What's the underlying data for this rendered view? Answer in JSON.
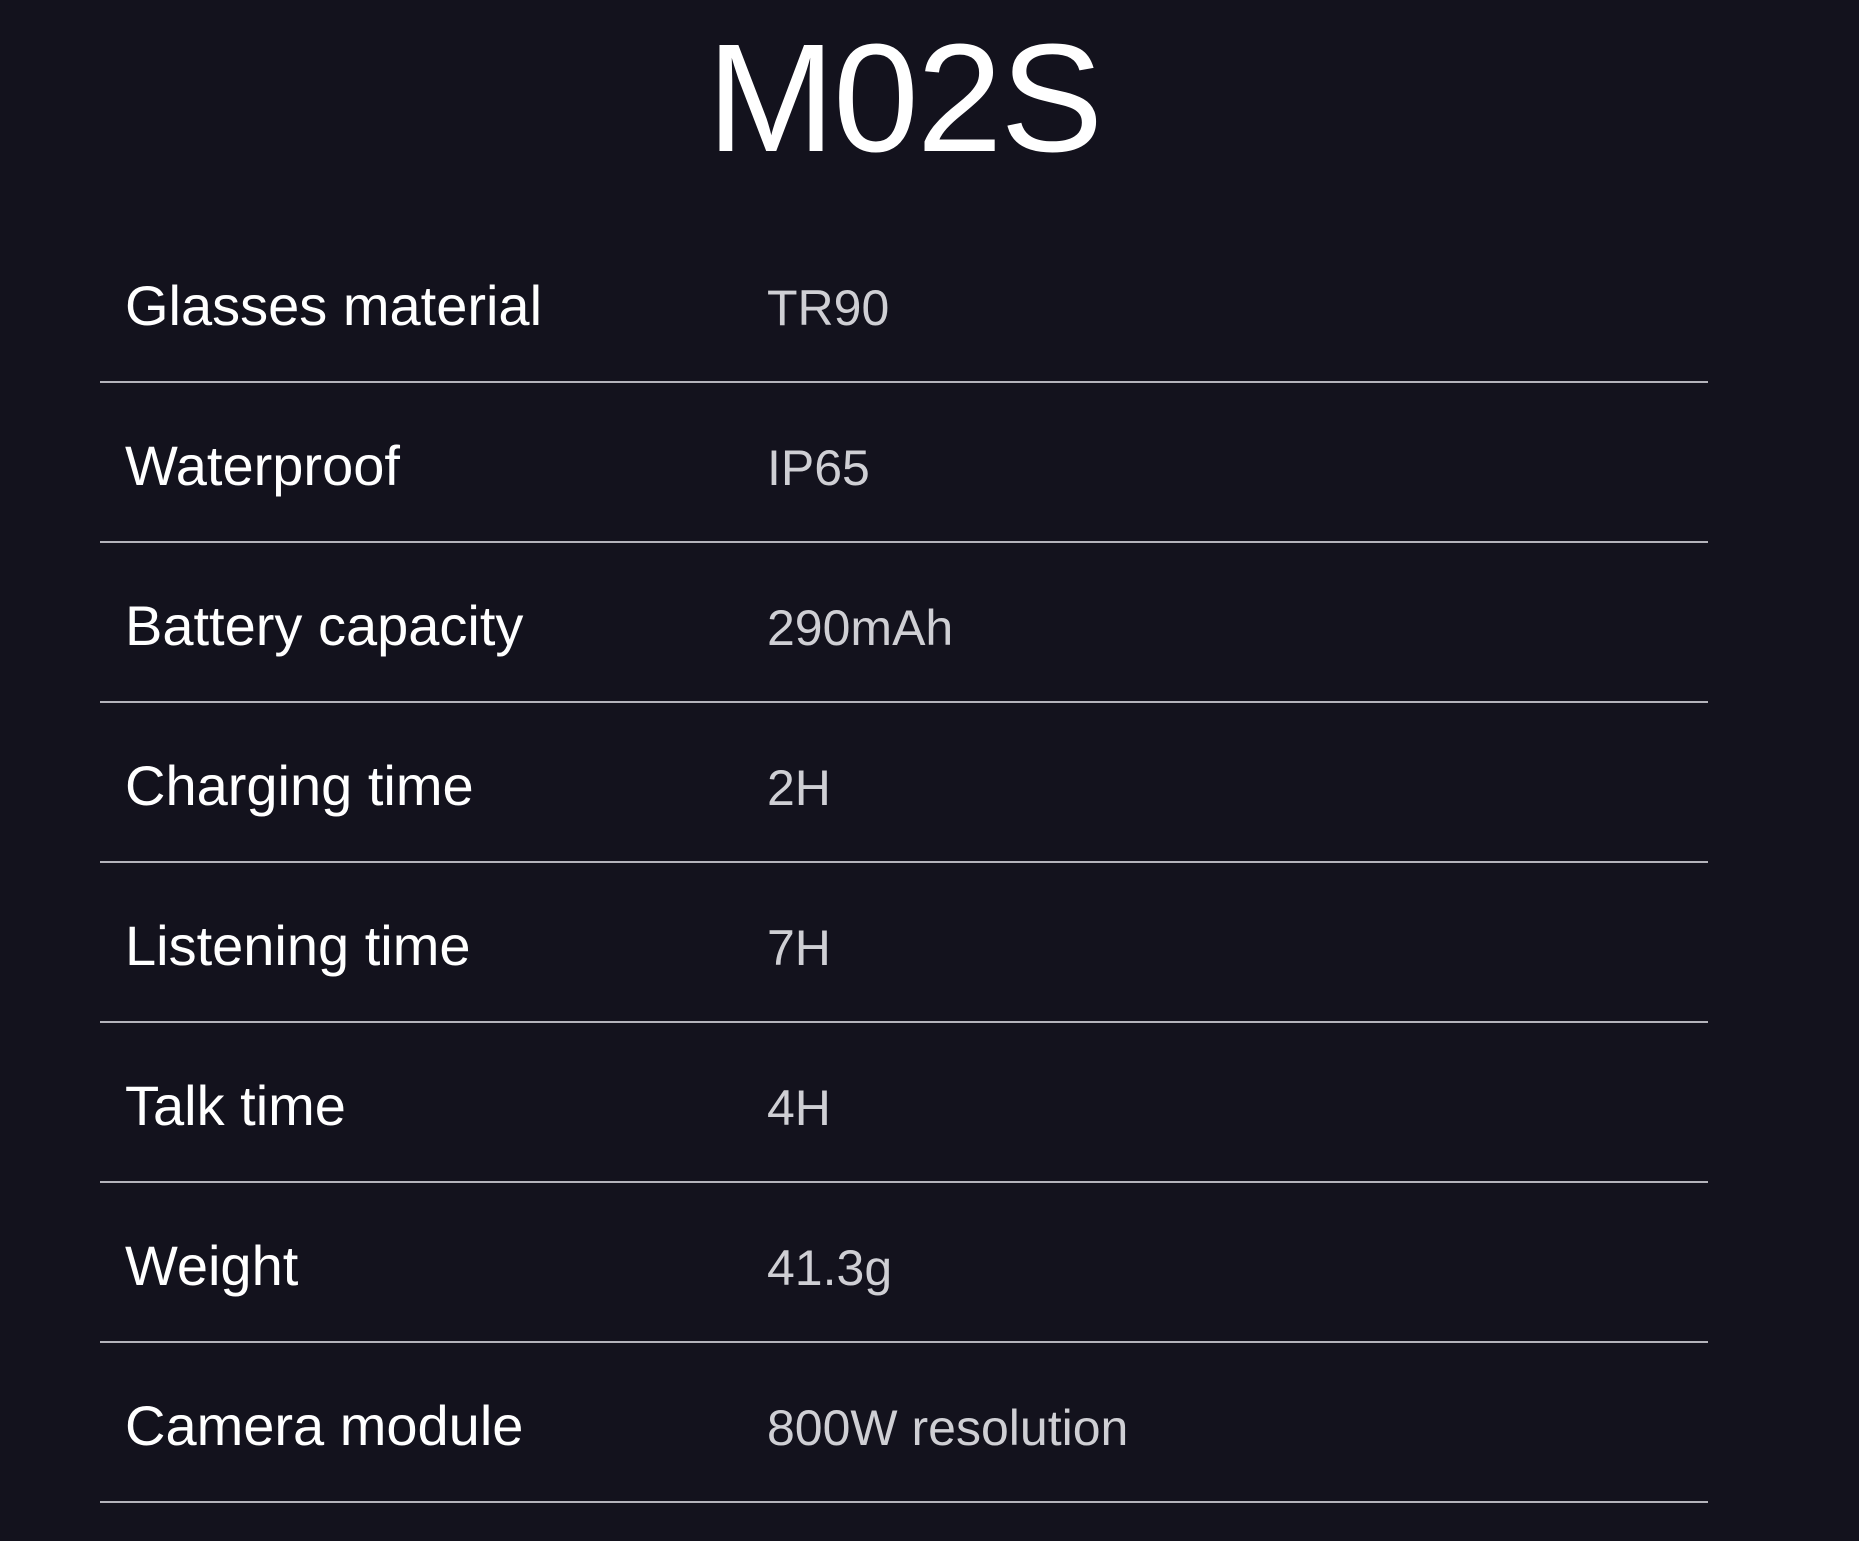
{
  "title": "M02S",
  "specs": [
    {
      "label": "Glasses material",
      "value": "TR90"
    },
    {
      "label": "Waterproof",
      "value": "IP65"
    },
    {
      "label": "Battery capacity",
      "value": "290mAh"
    },
    {
      "label": "Charging time",
      "value": "2H"
    },
    {
      "label": "Listening time",
      "value": "7H"
    },
    {
      "label": "Talk time",
      "value": "4H"
    },
    {
      "label": "Weight",
      "value": "41.3g"
    },
    {
      "label": "Camera module",
      "value": "800W resolution"
    }
  ],
  "colors": {
    "background": "#13121d",
    "label": "#ffffff",
    "value": "#cfcfd4",
    "divider": "#b4b3bb"
  }
}
